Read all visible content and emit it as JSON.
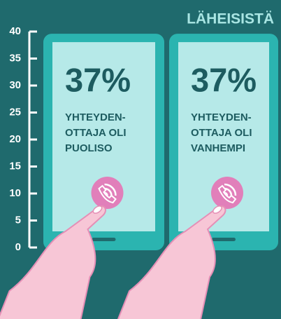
{
  "chart_data": {
    "type": "bar",
    "title": "LÄHEISISTÄ",
    "categories": [
      [
        "YHTEYDEN-",
        "OTTAJA OLI",
        "PUOLISO"
      ],
      [
        "YHTEYDEN-",
        "OTTAJA OLI",
        "VANHEMPI"
      ]
    ],
    "values": [
      37,
      37
    ],
    "value_labels": [
      "37%",
      "37%"
    ],
    "ylim": [
      0,
      40
    ],
    "yticks": [
      0,
      5,
      10,
      15,
      20,
      25,
      30,
      35,
      40
    ],
    "color": "#b6e9e8"
  }
}
